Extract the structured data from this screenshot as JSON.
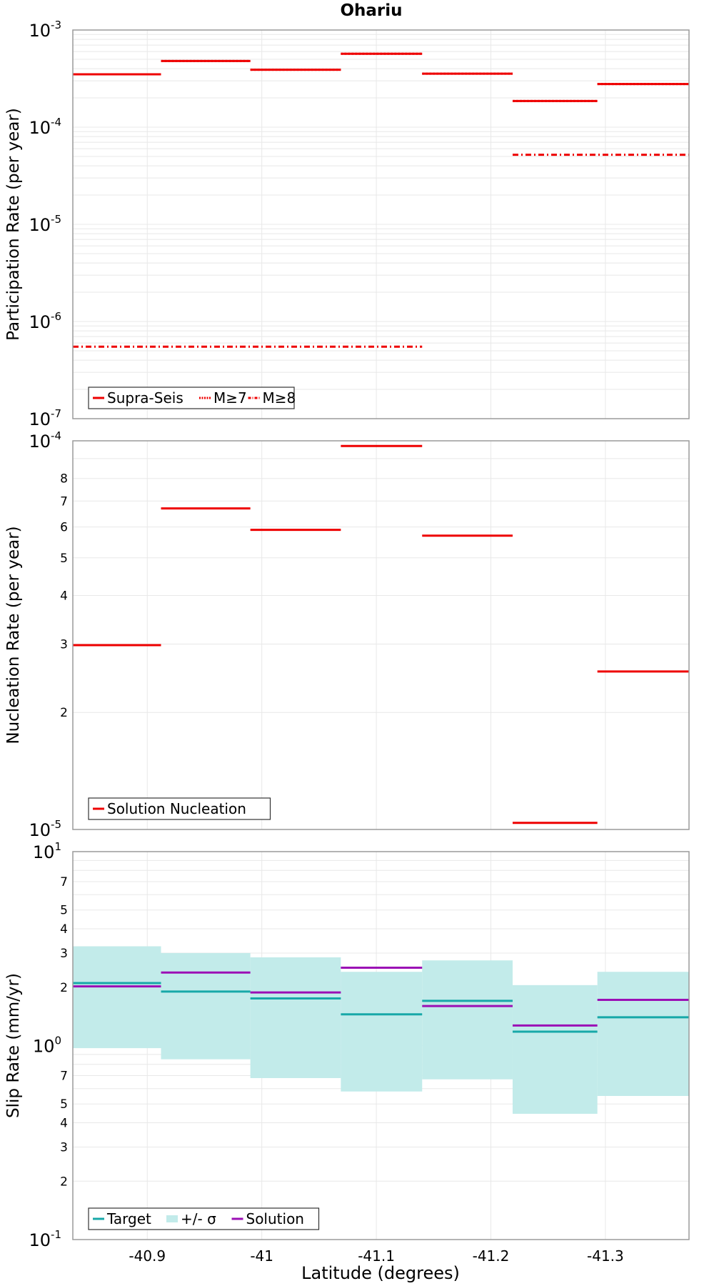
{
  "colors": {
    "red": "#ee0000",
    "teal": "#17a8a8",
    "purple": "#9b0fb5",
    "band": "#c2ebea",
    "grid": "#e8e8e8",
    "frame": "#9a9a9a"
  },
  "title": "Ohariu",
  "x_axis": {
    "label": "Latitude (degrees)",
    "range": [
      -40.835,
      -41.373
    ],
    "ticks": [
      -40.9,
      -41,
      -41.1,
      -41.2,
      -41.3
    ],
    "tick_labels": [
      "-40.9",
      "-41",
      "-41.1",
      "-41.2",
      "-41.3"
    ]
  },
  "chart_data": [
    {
      "type": "line",
      "ylabel": "Participation Rate (per year)",
      "yscale": "log",
      "ylim": [
        1e-07,
        0.001
      ],
      "y_major_ticks": [
        {
          "value": 0.001,
          "base": "10",
          "exp": "-3"
        },
        {
          "value": 0.0001,
          "base": "10",
          "exp": "-4"
        },
        {
          "value": 1e-05,
          "base": "10",
          "exp": "-5"
        },
        {
          "value": 1e-06,
          "base": "10",
          "exp": "-6"
        },
        {
          "value": 1e-07,
          "base": "10",
          "exp": "-7"
        }
      ],
      "y_minor_labels": [],
      "grid": true,
      "legend_position": "bottom-left",
      "legend": [
        {
          "name": "Supra-Seis",
          "style": "solid",
          "color": "#ee0000"
        },
        {
          "name": "M≥7",
          "style": "dotted",
          "color": "#ee0000"
        },
        {
          "name": "M≥8",
          "style": "dashdot",
          "color": "#ee0000"
        }
      ],
      "series": [
        {
          "name": "Supra-Seis",
          "style": "solid",
          "color": "#ee0000",
          "segments": [
            {
              "x0": -40.835,
              "x1": -40.912,
              "y": 0.00035
            },
            {
              "x0": -40.912,
              "x1": -40.99,
              "y": 0.00048
            },
            {
              "x0": -40.99,
              "x1": -41.069,
              "y": 0.00039
            },
            {
              "x0": -41.069,
              "x1": -41.14,
              "y": 0.00057
            },
            {
              "x0": -41.14,
              "x1": -41.219,
              "y": 0.000355
            },
            {
              "x0": -41.219,
              "x1": -41.293,
              "y": 0.000186
            },
            {
              "x0": -41.293,
              "x1": -41.373,
              "y": 0.000278
            }
          ]
        },
        {
          "name": "M≥7",
          "style": "dotted",
          "color": "#ee0000",
          "segments": [
            {
              "x0": -40.835,
              "x1": -40.912,
              "y": 0.00035
            },
            {
              "x0": -40.912,
              "x1": -40.99,
              "y": 0.00048
            },
            {
              "x0": -40.99,
              "x1": -41.069,
              "y": 0.00039
            },
            {
              "x0": -41.069,
              "x1": -41.14,
              "y": 0.00057
            },
            {
              "x0": -41.14,
              "x1": -41.219,
              "y": 0.000355
            },
            {
              "x0": -41.219,
              "x1": -41.293,
              "y": 0.000186
            },
            {
              "x0": -41.293,
              "x1": -41.373,
              "y": 0.000278
            }
          ]
        },
        {
          "name": "M≥8",
          "style": "dashdot",
          "color": "#ee0000",
          "segments": [
            {
              "x0": -40.835,
              "x1": -41.14,
              "y": 5.5e-07
            },
            {
              "x0": -41.219,
              "x1": -41.373,
              "y": 5.2e-05
            }
          ]
        }
      ]
    },
    {
      "type": "line",
      "ylabel": "Nucleation Rate (per year)",
      "yscale": "log",
      "ylim": [
        1e-05,
        0.0001
      ],
      "y_major_ticks": [
        {
          "value": 0.0001,
          "base": "10",
          "exp": "-4"
        },
        {
          "value": 1e-05,
          "base": "10",
          "exp": "-5"
        }
      ],
      "y_minor_labels": [
        {
          "value": 8e-05,
          "label": "8"
        },
        {
          "value": 7e-05,
          "label": "7"
        },
        {
          "value": 6e-05,
          "label": "6"
        },
        {
          "value": 5e-05,
          "label": "5"
        },
        {
          "value": 4e-05,
          "label": "4"
        },
        {
          "value": 3e-05,
          "label": "3"
        },
        {
          "value": 2e-05,
          "label": "2"
        }
      ],
      "grid": true,
      "legend_position": "bottom-left",
      "legend": [
        {
          "name": "Solution Nucleation",
          "style": "solid",
          "color": "#ee0000"
        }
      ],
      "series": [
        {
          "name": "Solution Nucleation",
          "style": "solid",
          "color": "#ee0000",
          "segments": [
            {
              "x0": -40.835,
              "x1": -40.912,
              "y": 2.98e-05
            },
            {
              "x0": -40.912,
              "x1": -40.99,
              "y": 6.7e-05
            },
            {
              "x0": -40.99,
              "x1": -41.069,
              "y": 5.9e-05
            },
            {
              "x0": -41.069,
              "x1": -41.14,
              "y": 9.7e-05
            },
            {
              "x0": -41.14,
              "x1": -41.219,
              "y": 5.7e-05
            },
            {
              "x0": -41.219,
              "x1": -41.293,
              "y": 1.04e-05
            },
            {
              "x0": -41.293,
              "x1": -41.373,
              "y": 2.55e-05
            }
          ]
        }
      ]
    },
    {
      "type": "line",
      "ylabel": "Slip Rate (mm/yr)",
      "yscale": "log",
      "ylim": [
        0.1,
        10
      ],
      "y_major_ticks": [
        {
          "value": 10,
          "base": "10",
          "exp": "1"
        },
        {
          "value": 1,
          "base": "10",
          "exp": "0"
        },
        {
          "value": 0.1,
          "base": "10",
          "exp": "-1"
        }
      ],
      "y_minor_labels": [
        {
          "value": 7,
          "label": "7"
        },
        {
          "value": 5,
          "label": "5"
        },
        {
          "value": 4,
          "label": "4"
        },
        {
          "value": 3,
          "label": "3"
        },
        {
          "value": 2,
          "label": "2"
        },
        {
          "value": 0.7,
          "label": "7"
        },
        {
          "value": 0.5,
          "label": "5"
        },
        {
          "value": 0.4,
          "label": "4"
        },
        {
          "value": 0.3,
          "label": "3"
        },
        {
          "value": 0.2,
          "label": "2"
        }
      ],
      "grid": true,
      "legend_position": "bottom-left",
      "legend": [
        {
          "name": "Target",
          "style": "solid",
          "color": "#17a8a8"
        },
        {
          "name": "+/- σ",
          "style": "band",
          "color": "#c2ebea"
        },
        {
          "name": "Solution",
          "style": "solid",
          "color": "#9b0fb5"
        }
      ],
      "band": {
        "name": "+/- σ",
        "color": "#c2ebea",
        "segments": [
          {
            "x0": -40.835,
            "x1": -40.912,
            "low": 0.97,
            "high": 3.25
          },
          {
            "x0": -40.912,
            "x1": -40.99,
            "low": 0.85,
            "high": 3.0
          },
          {
            "x0": -40.99,
            "x1": -41.069,
            "low": 0.68,
            "high": 2.85
          },
          {
            "x0": -41.069,
            "x1": -41.14,
            "low": 0.58,
            "high": 2.4
          },
          {
            "x0": -41.14,
            "x1": -41.219,
            "low": 0.67,
            "high": 2.75
          },
          {
            "x0": -41.219,
            "x1": -41.293,
            "low": 0.445,
            "high": 2.05
          },
          {
            "x0": -41.293,
            "x1": -41.373,
            "low": 0.55,
            "high": 2.4
          }
        ]
      },
      "series": [
        {
          "name": "Target",
          "style": "solid",
          "color": "#17a8a8",
          "segments": [
            {
              "x0": -40.835,
              "x1": -40.912,
              "y": 2.1
            },
            {
              "x0": -40.912,
              "x1": -40.99,
              "y": 1.9
            },
            {
              "x0": -40.99,
              "x1": -41.069,
              "y": 1.75
            },
            {
              "x0": -41.069,
              "x1": -41.14,
              "y": 1.45
            },
            {
              "x0": -41.14,
              "x1": -41.219,
              "y": 1.7
            },
            {
              "x0": -41.219,
              "x1": -41.293,
              "y": 1.18
            },
            {
              "x0": -41.293,
              "x1": -41.373,
              "y": 1.4
            }
          ]
        },
        {
          "name": "Solution",
          "style": "solid",
          "color": "#9b0fb5",
          "segments": [
            {
              "x0": -40.835,
              "x1": -40.912,
              "y": 2.02
            },
            {
              "x0": -40.912,
              "x1": -40.99,
              "y": 2.38
            },
            {
              "x0": -40.99,
              "x1": -41.069,
              "y": 1.88
            },
            {
              "x0": -41.069,
              "x1": -41.14,
              "y": 2.52
            },
            {
              "x0": -41.14,
              "x1": -41.219,
              "y": 1.6
            },
            {
              "x0": -41.219,
              "x1": -41.293,
              "y": 1.27
            },
            {
              "x0": -41.293,
              "x1": -41.373,
              "y": 1.72
            }
          ]
        }
      ]
    }
  ]
}
